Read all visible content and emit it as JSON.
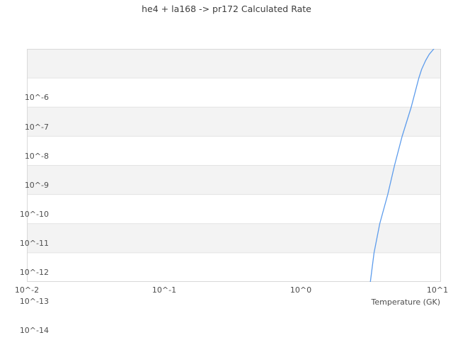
{
  "chart_data": {
    "type": "line",
    "title": "he4 + la168 -> pr172 Calculated Rate",
    "xlabel": "Temperature (GK)",
    "ylabel": "",
    "x_scale": "log",
    "y_scale": "log",
    "x_range_log10": [
      -2,
      1.03
    ],
    "y_range_log10": [
      -6,
      -14
    ],
    "x_tick_labels": [
      "10^-2",
      "10^-1",
      "10^0",
      "10^1"
    ],
    "y_tick_labels": [
      "10^-6",
      "10^-7",
      "10^-8",
      "10^-9",
      "10^-10",
      "10^-11",
      "10^-12",
      "10^-13",
      "10^-14"
    ],
    "grid": "horizontal-decade-lines",
    "legend": "none",
    "colors": {
      "line": "#5d9cec",
      "band": "#f3f3f3",
      "gridline": "#e3e3e3",
      "plot_border": "#d9d9d9",
      "title_text": "#3d3d3d",
      "tick_text": "#4d4d4d"
    },
    "series": [
      {
        "name": "Calculated Rate",
        "x_units": "GK",
        "points": [
          [
            3.26,
            1e-14
          ],
          [
            3.47,
            1e-13
          ],
          [
            3.82,
            1e-12
          ],
          [
            4.37,
            1e-11
          ],
          [
            4.9,
            1e-10
          ],
          [
            5.57,
            1e-09
          ],
          [
            6.49,
            1e-08
          ],
          [
            7.38,
            1e-07
          ],
          [
            7.74,
            2e-07
          ],
          [
            8.28,
            4e-07
          ],
          [
            8.79,
            6.5e-07
          ],
          [
            9.5,
            1e-06
          ]
        ]
      }
    ]
  }
}
